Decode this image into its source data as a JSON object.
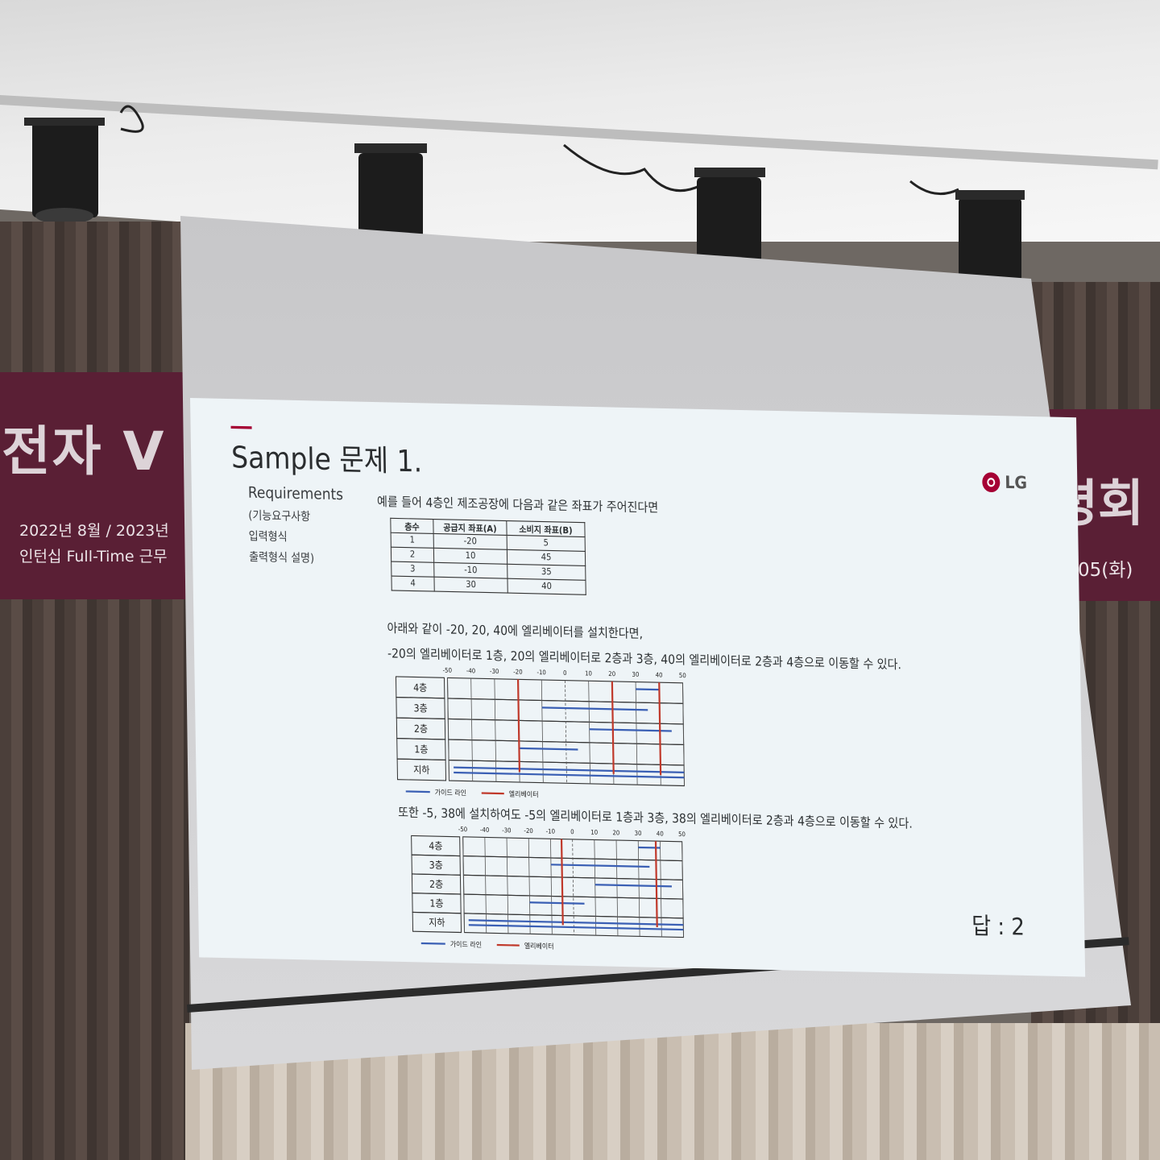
{
  "banner_left": {
    "big_text": "전자 V",
    "line1": "2022년 8월 / 2023년",
    "line2": "인턴십 Full-Time 근무"
  },
  "banner_right": {
    "big_text": "령회",
    "date": "05(화)"
  },
  "slide": {
    "title": "Sample 문제 1.",
    "logo_text": "LG",
    "requirements": {
      "title": "Requirements",
      "lines": [
        "(기능요구사항",
        "입력형식",
        "출력형식 설명)"
      ]
    },
    "intro": "예를 들어 4층인 제조공장에 다음과 같은 좌표가 주어진다면",
    "table": {
      "headers": [
        "층수",
        "공급지 좌표(A)",
        "소비지 좌표(B)"
      ],
      "rows": [
        [
          "1",
          "-20",
          "5"
        ],
        [
          "2",
          "10",
          "45"
        ],
        [
          "3",
          "-10",
          "35"
        ],
        [
          "4",
          "30",
          "40"
        ]
      ]
    },
    "para1": "아래와 같이 -20, 20, 40에 엘리베이터를 설치한다면,",
    "para2": "-20의 엘리베이터로 1층, 20의 엘리베이터로 2층과 3층, 40의 엘리베이터로 2층과 4층으로 이동할 수 있다.",
    "para3": "또한 -5, 38에 설치하여도 -5의 엘리베이터로 1층과 3층, 38의 엘리베이터로 2층과 4층으로 이동할 수 있다.",
    "answer": "답 : 2",
    "diagram": {
      "axis_ticks": [
        "-50",
        "-40",
        "-30",
        "-20",
        "-10",
        "0",
        "10",
        "20",
        "30",
        "40",
        "50"
      ],
      "floor_labels": [
        "4층",
        "3층",
        "2층",
        "1층",
        "지하"
      ],
      "legend_guide": "가이드 라인",
      "legend_elevator": "엘리베이터",
      "guide_color": "#3a5fb4",
      "elevator_color": "#c0392b",
      "diagram1_elevators": [
        -20,
        20,
        40
      ],
      "diagram2_elevators": [
        -5,
        38
      ]
    }
  }
}
